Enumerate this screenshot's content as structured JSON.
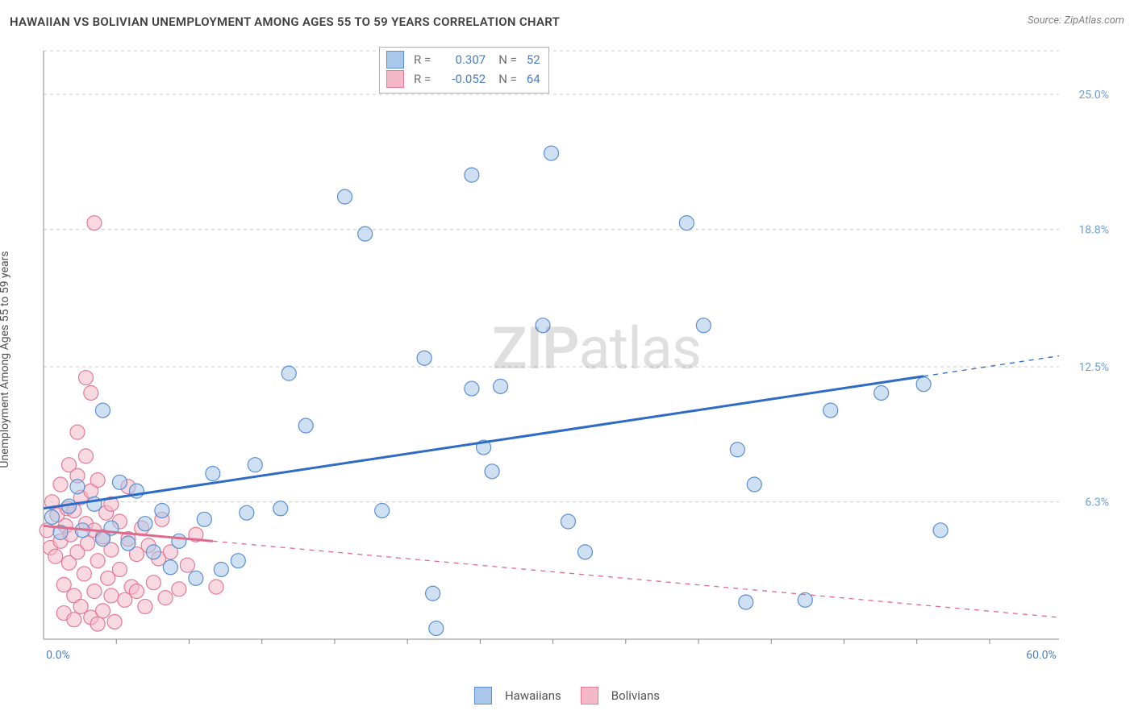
{
  "title": "HAWAIIAN VS BOLIVIAN UNEMPLOYMENT AMONG AGES 55 TO 59 YEARS CORRELATION CHART",
  "source": "Source: ZipAtlas.com",
  "y_axis_label": "Unemployment Among Ages 55 to 59 years",
  "watermark": {
    "bold": "ZIP",
    "rest": "atlas"
  },
  "chart": {
    "type": "scatter",
    "xlim": [
      0,
      60
    ],
    "ylim": [
      0,
      27
    ],
    "x_ticks_minor_step": 4.3,
    "y_gridlines": [
      6.3,
      12.5,
      18.8,
      25.0
    ],
    "y_tick_labels": [
      "6.3%",
      "12.5%",
      "18.8%",
      "25.0%"
    ],
    "x_min_label": "0.0%",
    "x_max_label": "60.0%",
    "background_color": "#ffffff",
    "grid_color": "#cccccc",
    "axis_color": "#888888",
    "marker_radius": 9,
    "series": [
      {
        "key": "hawaiians",
        "label": "Hawaiians",
        "fill": "#a9c7ea",
        "stroke": "#5b8fd1",
        "R": "0.307",
        "N": "52",
        "trend": {
          "x1": 0,
          "y1": 6.0,
          "x2": 60,
          "y2": 13.0,
          "color": "#2e6bc6",
          "solid_until_x": 52
        },
        "points": [
          [
            0.5,
            5.6
          ],
          [
            1.0,
            4.9
          ],
          [
            1.5,
            6.1
          ],
          [
            2.0,
            7.0
          ],
          [
            2.3,
            5.0
          ],
          [
            3.0,
            6.2
          ],
          [
            3.5,
            4.6
          ],
          [
            4.0,
            5.1
          ],
          [
            4.5,
            7.2
          ],
          [
            5.0,
            4.4
          ],
          [
            5.5,
            6.8
          ],
          [
            6.0,
            5.3
          ],
          [
            6.5,
            4.0
          ],
          [
            3.5,
            10.5
          ],
          [
            7.0,
            5.9
          ],
          [
            7.5,
            3.3
          ],
          [
            8.0,
            4.5
          ],
          [
            9.0,
            2.8
          ],
          [
            9.5,
            5.5
          ],
          [
            10.0,
            7.6
          ],
          [
            10.5,
            3.2
          ],
          [
            11.5,
            3.6
          ],
          [
            12.0,
            5.8
          ],
          [
            12.5,
            8.0
          ],
          [
            14.0,
            6.0
          ],
          [
            14.5,
            12.2
          ],
          [
            15.5,
            9.8
          ],
          [
            17.8,
            20.3
          ],
          [
            19.0,
            18.6
          ],
          [
            20.0,
            5.9
          ],
          [
            22.5,
            12.9
          ],
          [
            23.0,
            2.1
          ],
          [
            23.2,
            0.5
          ],
          [
            25.3,
            11.5
          ],
          [
            25.3,
            21.3
          ],
          [
            26.0,
            8.8
          ],
          [
            26.5,
            7.7
          ],
          [
            27.0,
            11.6
          ],
          [
            29.5,
            14.4
          ],
          [
            30.0,
            22.3
          ],
          [
            31.0,
            5.4
          ],
          [
            32.0,
            4.0
          ],
          [
            38.0,
            19.1
          ],
          [
            39.0,
            14.4
          ],
          [
            41.0,
            8.7
          ],
          [
            42.0,
            7.1
          ],
          [
            41.5,
            1.7
          ],
          [
            45.0,
            1.8
          ],
          [
            46.5,
            10.5
          ],
          [
            49.5,
            11.3
          ],
          [
            52.0,
            11.7
          ],
          [
            53.0,
            5.0
          ]
        ]
      },
      {
        "key": "bolivians",
        "label": "Bolivians",
        "fill": "#f4b9c8",
        "stroke": "#e47a97",
        "R": "-0.052",
        "N": "64",
        "trend": {
          "x1": 0,
          "y1": 5.2,
          "x2": 60,
          "y2": 1.0,
          "color": "#e06a8c",
          "solid_until_x": 10
        },
        "points": [
          [
            0.2,
            5.0
          ],
          [
            0.4,
            4.2
          ],
          [
            0.5,
            6.3
          ],
          [
            0.7,
            3.8
          ],
          [
            0.8,
            5.7
          ],
          [
            1.0,
            4.5
          ],
          [
            1.0,
            7.1
          ],
          [
            1.2,
            2.5
          ],
          [
            1.3,
            5.2
          ],
          [
            1.4,
            6.0
          ],
          [
            1.5,
            3.5
          ],
          [
            1.5,
            8.0
          ],
          [
            1.6,
            4.8
          ],
          [
            1.8,
            2.0
          ],
          [
            1.8,
            5.9
          ],
          [
            2.0,
            7.5
          ],
          [
            2.0,
            4.0
          ],
          [
            2.2,
            1.5
          ],
          [
            2.2,
            6.5
          ],
          [
            2.4,
            3.0
          ],
          [
            2.5,
            5.3
          ],
          [
            2.5,
            8.4
          ],
          [
            2.6,
            4.4
          ],
          [
            2.8,
            1.0
          ],
          [
            2.8,
            6.8
          ],
          [
            3.0,
            2.2
          ],
          [
            3.0,
            5.0
          ],
          [
            3.2,
            3.6
          ],
          [
            3.2,
            7.3
          ],
          [
            3.5,
            4.7
          ],
          [
            3.5,
            1.3
          ],
          [
            3.7,
            5.8
          ],
          [
            3.8,
            2.8
          ],
          [
            4.0,
            4.1
          ],
          [
            4.0,
            6.2
          ],
          [
            4.2,
            0.8
          ],
          [
            4.5,
            3.2
          ],
          [
            4.5,
            5.4
          ],
          [
            4.8,
            1.8
          ],
          [
            5.0,
            4.6
          ],
          [
            5.0,
            7.0
          ],
          [
            5.2,
            2.4
          ],
          [
            5.5,
            3.9
          ],
          [
            5.8,
            5.1
          ],
          [
            6.0,
            1.5
          ],
          [
            6.2,
            4.3
          ],
          [
            6.5,
            2.6
          ],
          [
            6.8,
            3.7
          ],
          [
            7.0,
            5.5
          ],
          [
            7.2,
            1.9
          ],
          [
            7.5,
            4.0
          ],
          [
            8.0,
            2.3
          ],
          [
            8.5,
            3.4
          ],
          [
            9.0,
            4.8
          ],
          [
            2.0,
            9.5
          ],
          [
            2.5,
            12.0
          ],
          [
            2.8,
            11.3
          ],
          [
            3.0,
            19.1
          ],
          [
            4.0,
            2.0
          ],
          [
            5.5,
            2.2
          ],
          [
            10.2,
            2.4
          ],
          [
            1.2,
            1.2
          ],
          [
            1.8,
            0.9
          ],
          [
            3.2,
            0.7
          ]
        ]
      }
    ]
  },
  "legend_top": {
    "rows": [
      {
        "swatch_fill": "#a9c7ea",
        "swatch_stroke": "#5b8fd1",
        "R": "0.307",
        "N": "52"
      },
      {
        "swatch_fill": "#f4b9c8",
        "swatch_stroke": "#e47a97",
        "R": "-0.052",
        "N": "64"
      }
    ]
  },
  "legend_bottom": [
    {
      "swatch_fill": "#a9c7ea",
      "swatch_stroke": "#5b8fd1",
      "label": "Hawaiians"
    },
    {
      "swatch_fill": "#f4b9c8",
      "swatch_stroke": "#e47a97",
      "label": "Bolivians"
    }
  ]
}
